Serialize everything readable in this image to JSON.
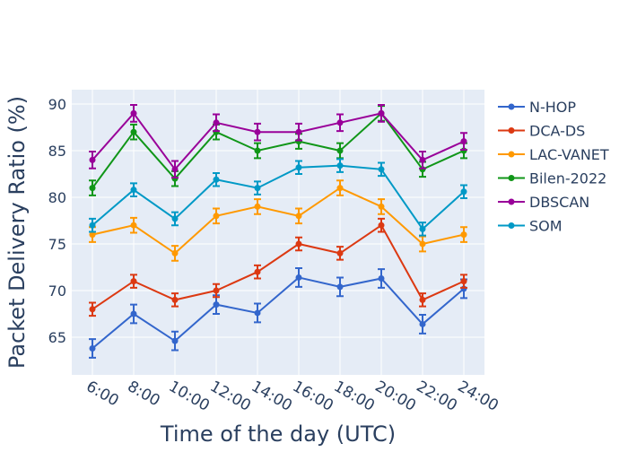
{
  "chart_data": {
    "type": "line",
    "title": "",
    "xlabel": "Time of the day (UTC)",
    "ylabel": "Packet Delivery Ratio (%)",
    "categories": [
      "6:00",
      "8:00",
      "10:00",
      "12:00",
      "14:00",
      "16:00",
      "18:00",
      "20:00",
      "22:00",
      "24:00"
    ],
    "ylim": [
      61,
      91.5
    ],
    "yticks": [
      65,
      70,
      75,
      80,
      85,
      90
    ],
    "grid": true,
    "legend_position": "right",
    "series": [
      {
        "name": "N-HOP",
        "color": "#3366cc",
        "values": [
          63.8,
          67.5,
          64.6,
          68.5,
          67.6,
          71.4,
          70.4,
          71.3,
          66.4,
          70.2
        ],
        "error": [
          1.0,
          1.0,
          1.0,
          1.0,
          1.0,
          1.0,
          1.0,
          1.0,
          1.0,
          1.0
        ]
      },
      {
        "name": "DCA-DS",
        "color": "#dc3912",
        "values": [
          68,
          71,
          69,
          70,
          72,
          75,
          74,
          77,
          69,
          71
        ],
        "error": [
          0.7,
          0.7,
          0.7,
          0.7,
          0.7,
          0.7,
          0.7,
          0.7,
          0.7,
          0.7
        ]
      },
      {
        "name": "LAC-VANET",
        "color": "#ff9900",
        "values": [
          76,
          77,
          74,
          78,
          79,
          78,
          81,
          79,
          75,
          76
        ],
        "error": [
          0.8,
          0.8,
          0.8,
          0.8,
          0.8,
          0.8,
          0.8,
          0.8,
          0.8,
          0.8
        ]
      },
      {
        "name": "Bilen-2022",
        "color": "#109618",
        "values": [
          81,
          87,
          82,
          87,
          85,
          86,
          85,
          89,
          83,
          85
        ],
        "error": [
          0.8,
          0.8,
          0.8,
          0.8,
          0.8,
          0.8,
          0.8,
          0.8,
          0.8,
          0.8
        ]
      },
      {
        "name": "DBSCAN",
        "color": "#990099",
        "values": [
          84,
          89,
          83,
          88,
          87,
          87,
          88,
          89,
          84,
          86
        ],
        "error": [
          0.9,
          0.9,
          0.9,
          0.9,
          0.9,
          0.9,
          0.9,
          0.9,
          0.9,
          0.9
        ]
      },
      {
        "name": "SOM",
        "color": "#0099c6",
        "values": [
          77.0,
          80.8,
          77.7,
          81.9,
          81.0,
          83.2,
          83.4,
          83.0,
          76.6,
          80.6
        ],
        "error": [
          0.7,
          0.7,
          0.7,
          0.7,
          0.7,
          0.7,
          0.7,
          0.7,
          0.7,
          0.7
        ]
      }
    ]
  }
}
